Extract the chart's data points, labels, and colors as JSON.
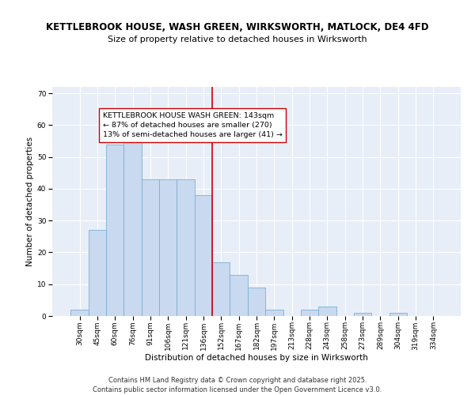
{
  "title_line1": "KETTLEBROOK HOUSE, WASH GREEN, WIRKSWORTH, MATLOCK, DE4 4FD",
  "title_line2": "Size of property relative to detached houses in Wirksworth",
  "xlabel": "Distribution of detached houses by size in Wirksworth",
  "ylabel": "Number of detached properties",
  "categories": [
    "30sqm",
    "45sqm",
    "60sqm",
    "76sqm",
    "91sqm",
    "106sqm",
    "121sqm",
    "136sqm",
    "152sqm",
    "167sqm",
    "182sqm",
    "197sqm",
    "213sqm",
    "228sqm",
    "243sqm",
    "258sqm",
    "273sqm",
    "289sqm",
    "304sqm",
    "319sqm",
    "334sqm"
  ],
  "values": [
    2,
    27,
    54,
    55,
    43,
    43,
    43,
    38,
    17,
    13,
    9,
    2,
    0,
    2,
    3,
    0,
    1,
    0,
    1,
    0,
    0
  ],
  "bar_color": "#c9d9f0",
  "bar_edge_color": "#7bafd4",
  "background_color": "#e8eef8",
  "grid_color": "#ffffff",
  "vline_x": 7.5,
  "vline_color": "#cc0000",
  "annotation_text": "KETTLEBROOK HOUSE WASH GREEN: 143sqm\n← 87% of detached houses are smaller (270)\n13% of semi-detached houses are larger (41) →",
  "annotation_box_color": "#ffffff",
  "annotation_box_edge": "#cc0000",
  "ylim": [
    0,
    72
  ],
  "yticks": [
    0,
    10,
    20,
    30,
    40,
    50,
    60,
    70
  ],
  "footer_text": "Contains HM Land Registry data © Crown copyright and database right 2025.\nContains public sector information licensed under the Open Government Licence v3.0.",
  "title_fontsize": 8.5,
  "subtitle_fontsize": 8,
  "axis_label_fontsize": 7.5,
  "tick_fontsize": 6.5,
  "annotation_fontsize": 6.8,
  "footer_fontsize": 6
}
